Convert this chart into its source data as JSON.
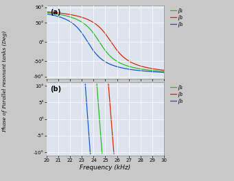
{
  "freq_start": 20,
  "freq_end": 30,
  "freq_num": 3000,
  "resonant_freqs": [
    24.5,
    25.5,
    23.5
  ],
  "Q_a": 10,
  "Q_b": 10,
  "colors": [
    "#22bb22",
    "#dd2200",
    "#1155cc"
  ],
  "labels": [
    "β₁",
    "β₂",
    "β₃"
  ],
  "xlabel": "Frequency (kHz)",
  "ylabel": "Phase of Parallel resonant tanks (Deg)",
  "ylim_a": [
    -95,
    95
  ],
  "yticks_a": [
    -90,
    -50,
    0,
    50,
    90
  ],
  "yticklabels_a": [
    "-90°",
    "-50°",
    "0°",
    "50°",
    "90°"
  ],
  "ylim_b": [
    -11,
    11
  ],
  "yticks_b": [
    -10,
    -5,
    0,
    5,
    10
  ],
  "yticklabels_b": [
    "-10°",
    "-5°",
    "0°",
    "5°",
    "10°"
  ],
  "xticks": [
    20,
    21,
    22,
    23,
    24,
    25,
    26,
    27,
    28,
    29,
    30
  ],
  "bg_color": "#dde4ee",
  "grid_color": "#ffffff",
  "fig_bg": "#c8c8c8",
  "label_a": "(a)",
  "label_b": "(b)",
  "title_fontsize": 6,
  "tick_fontsize": 5,
  "legend_fontsize": 5.5
}
